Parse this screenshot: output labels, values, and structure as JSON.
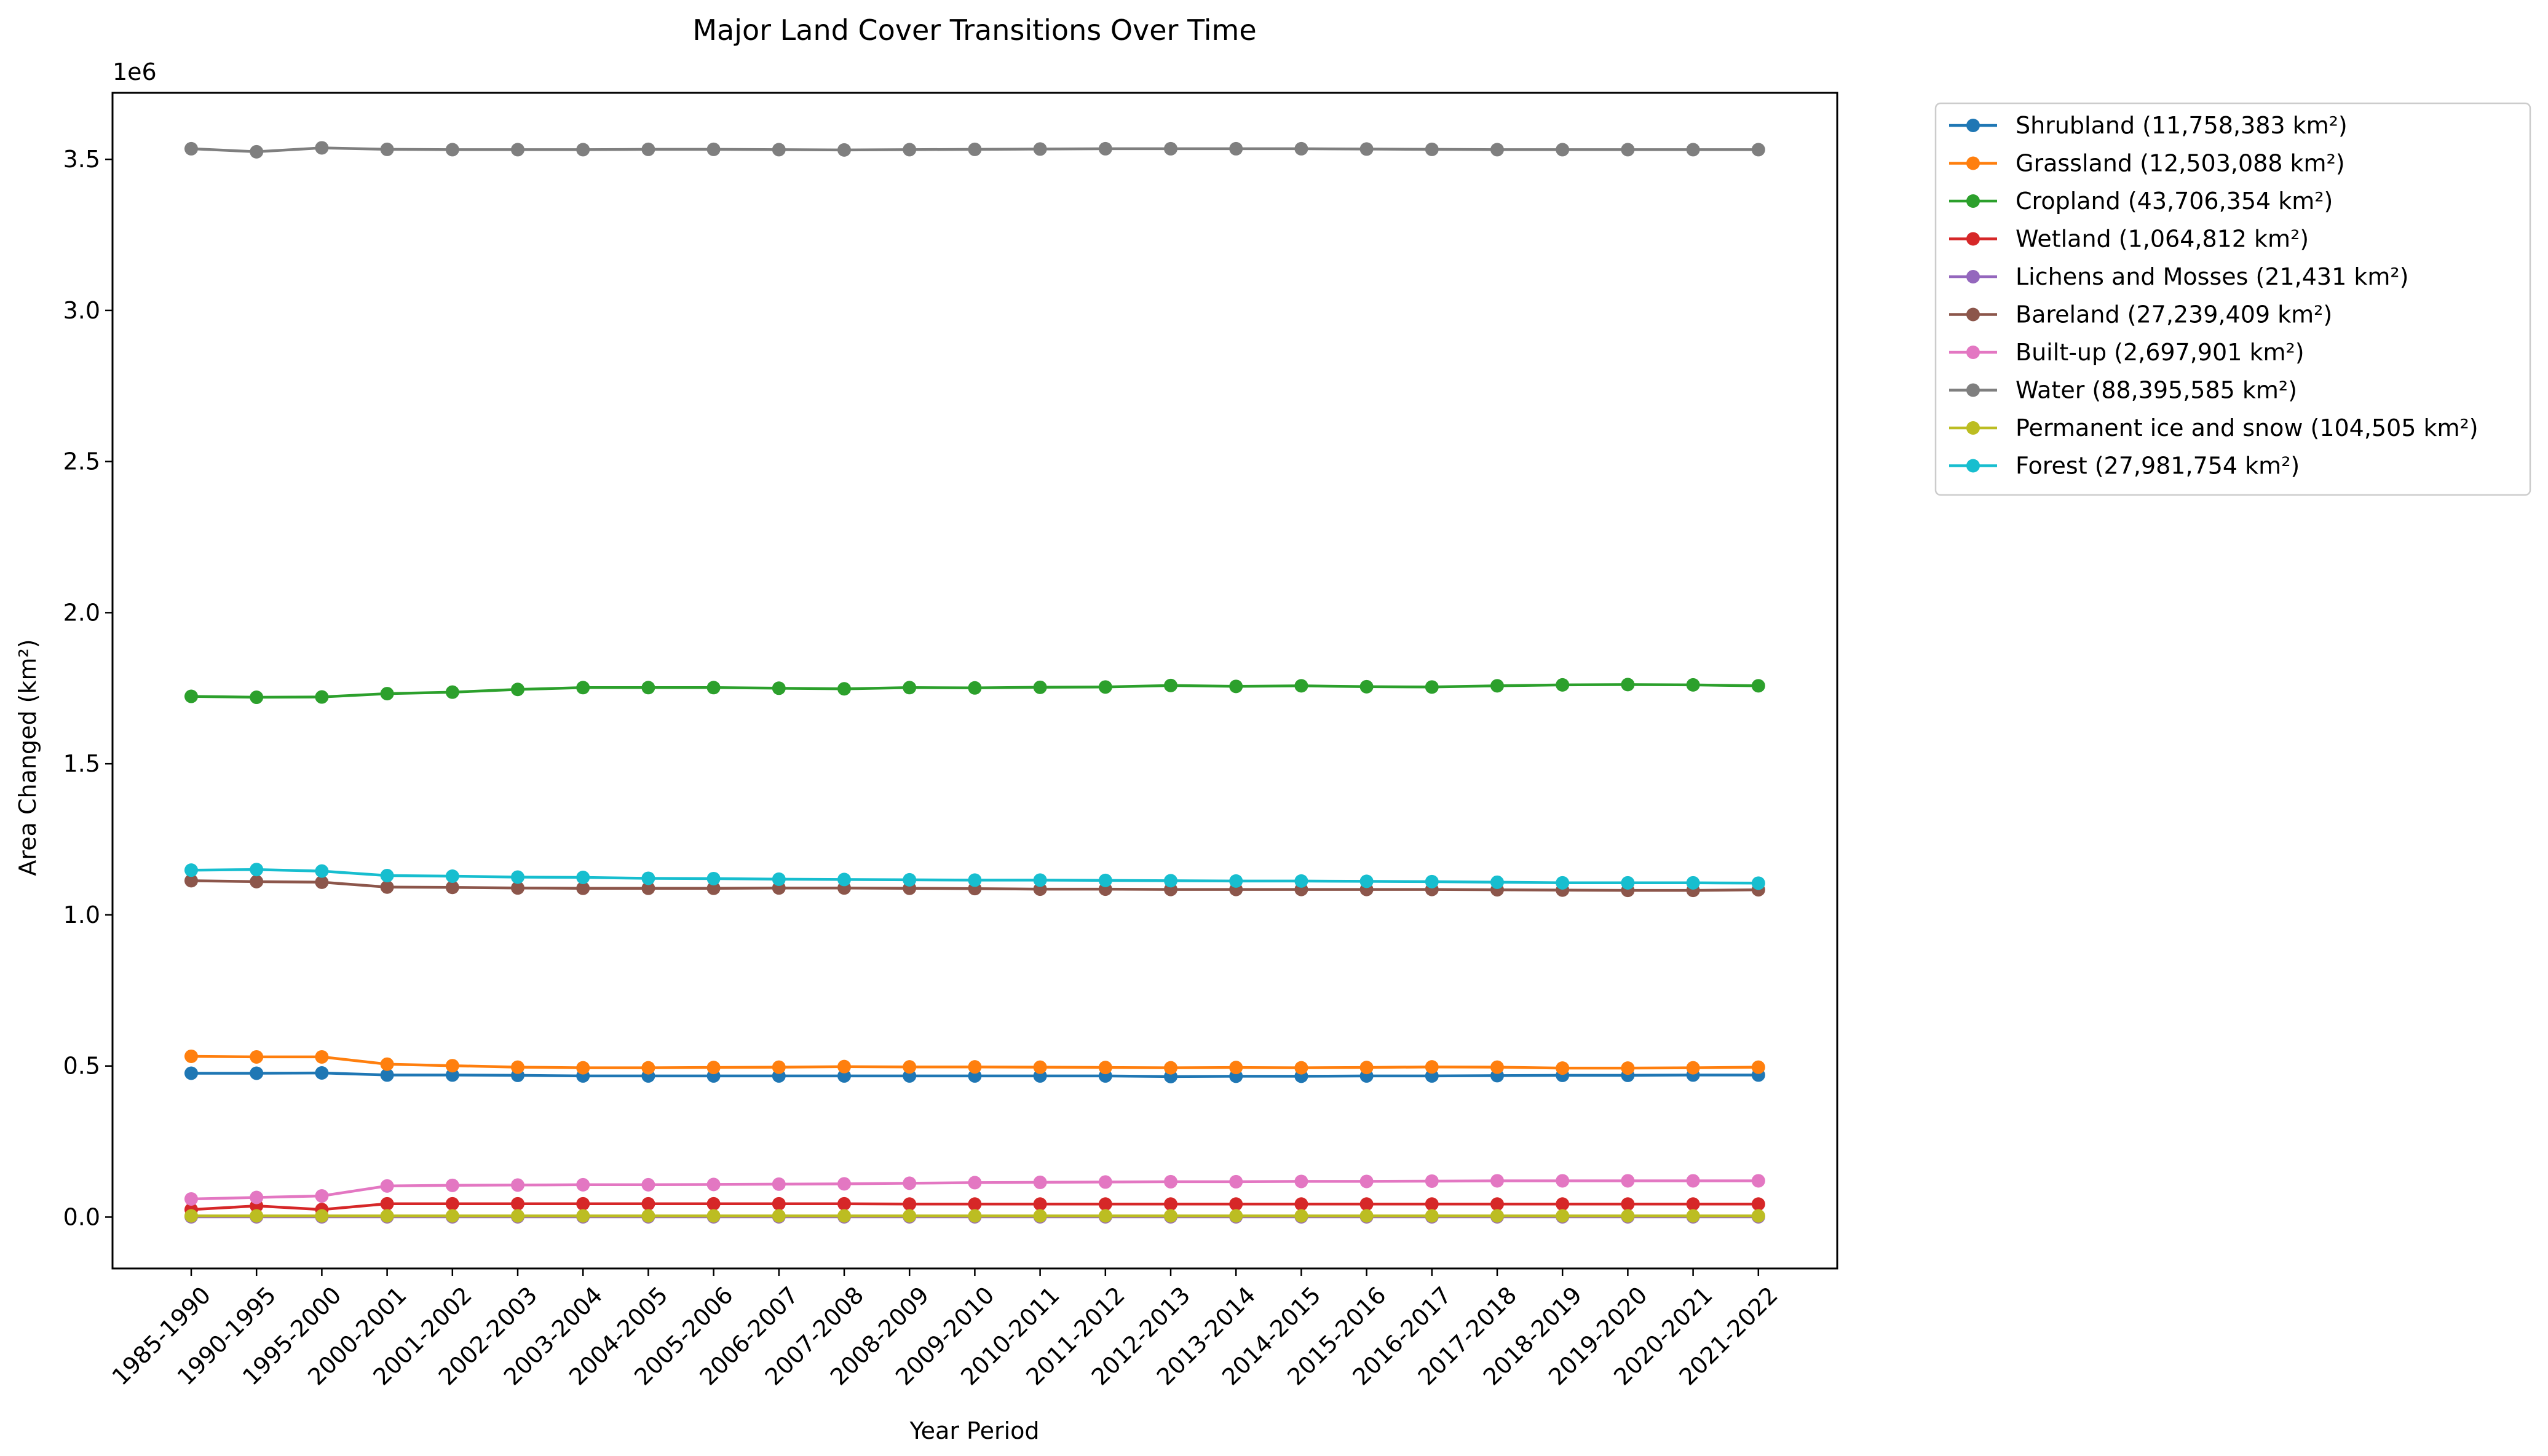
{
  "chart_data": {
    "type": "line",
    "title": "Major Land Cover Transitions Over Time",
    "xlabel": "Year Period",
    "ylabel": "Area Changed (km²)",
    "y_offset_label": "1e6",
    "ylim": [
      -170000,
      3720000
    ],
    "yticks": [
      0.0,
      0.5,
      1.0,
      1.5,
      2.0,
      2.5,
      3.0,
      3.5
    ],
    "ytick_multiplier": 1000000,
    "grid": false,
    "legend_position": "outside-top-right",
    "categories": [
      "1985-1990",
      "1990-1995",
      "1995-2000",
      "2000-2001",
      "2001-2002",
      "2002-2003",
      "2003-2004",
      "2004-2005",
      "2005-2006",
      "2006-2007",
      "2007-2008",
      "2008-2009",
      "2009-2010",
      "2010-2011",
      "2011-2012",
      "2012-2013",
      "2013-2014",
      "2014-2015",
      "2015-2016",
      "2016-2017",
      "2017-2018",
      "2018-2019",
      "2019-2020",
      "2020-2021",
      "2021-2022"
    ],
    "series": [
      {
        "name": "Shrubland (11,758,383 km²)",
        "color": "#1f77b4",
        "values": [
          476000,
          476000,
          477000,
          470000,
          470000,
          469000,
          467000,
          467000,
          467000,
          467000,
          467000,
          467000,
          467000,
          467000,
          467000,
          465000,
          466000,
          466000,
          467000,
          467000,
          468000,
          469000,
          469000,
          470000,
          470000
        ]
      },
      {
        "name": "Grassland (12,503,088 km²)",
        "color": "#ff7f0e",
        "values": [
          532000,
          530000,
          530000,
          506000,
          501000,
          496000,
          494000,
          494000,
          495000,
          496000,
          498000,
          497000,
          497000,
          496000,
          495000,
          494000,
          495000,
          494000,
          495000,
          497000,
          496000,
          493000,
          493000,
          494000,
          496000
        ]
      },
      {
        "name": "Cropland (43,706,354 km²)",
        "color": "#2ca02c",
        "values": [
          1723000,
          1720000,
          1721000,
          1732000,
          1737000,
          1746000,
          1752000,
          1752000,
          1752000,
          1750000,
          1748000,
          1752000,
          1751000,
          1753000,
          1754000,
          1759000,
          1756000,
          1758000,
          1755000,
          1754000,
          1758000,
          1761000,
          1762000,
          1761000,
          1758000
        ]
      },
      {
        "name": "Wetland (1,064,812 km²)",
        "color": "#d62728",
        "values": [
          25000,
          37000,
          25000,
          44000,
          44000,
          44000,
          44000,
          44000,
          44000,
          44000,
          44000,
          43000,
          43000,
          43000,
          43000,
          43000,
          43000,
          43000,
          43000,
          43000,
          43000,
          43000,
          43000,
          43000,
          43000
        ]
      },
      {
        "name": "Lichens and Mosses (21,431 km²)",
        "color": "#9467bd",
        "values": [
          1000,
          1000,
          1000,
          1000,
          1000,
          1000,
          1000,
          1000,
          1000,
          1000,
          1000,
          1000,
          1000,
          1000,
          1000,
          1000,
          1000,
          1000,
          1000,
          1000,
          1000,
          1000,
          1000,
          1000,
          1000
        ]
      },
      {
        "name": "Bareland (27,239,409 km²)",
        "color": "#8c564b",
        "values": [
          1113000,
          1110000,
          1108000,
          1092000,
          1091000,
          1089000,
          1088000,
          1088000,
          1088000,
          1089000,
          1089000,
          1088000,
          1087000,
          1085000,
          1085000,
          1084000,
          1084000,
          1084000,
          1084000,
          1084000,
          1083000,
          1082000,
          1081000,
          1081000,
          1083000
        ]
      },
      {
        "name": "Built-up (2,697,901 km²)",
        "color": "#e377c2",
        "values": [
          60000,
          65000,
          70000,
          103000,
          105000,
          106000,
          107000,
          107000,
          108000,
          109000,
          110000,
          112000,
          114000,
          115000,
          116000,
          117000,
          117000,
          118000,
          118000,
          119000,
          120000,
          120000,
          120000,
          120000,
          120000
        ]
      },
      {
        "name": "Water (88,395,585 km²)",
        "color": "#7f7f7f",
        "values": [
          3535000,
          3525000,
          3538000,
          3533000,
          3532000,
          3532000,
          3532000,
          3533000,
          3533000,
          3532000,
          3531000,
          3532000,
          3533000,
          3534000,
          3535000,
          3535000,
          3535000,
          3535000,
          3534000,
          3533000,
          3532000,
          3532000,
          3532000,
          3532000,
          3532000
        ]
      },
      {
        "name": "Permanent ice and snow (104,505 km²)",
        "color": "#bcbd22",
        "values": [
          4000,
          4000,
          4000,
          4000,
          4000,
          4000,
          4000,
          4000,
          4000,
          4000,
          4000,
          4000,
          4000,
          4000,
          4000,
          4000,
          4000,
          4000,
          4000,
          4000,
          4000,
          4000,
          4000,
          4000,
          4000
        ]
      },
      {
        "name": "Forest (27,981,754 km²)",
        "color": "#17becf",
        "values": [
          1148000,
          1150000,
          1145000,
          1130000,
          1128000,
          1125000,
          1124000,
          1121000,
          1120000,
          1118000,
          1117000,
          1116000,
          1115000,
          1115000,
          1114000,
          1113000,
          1112000,
          1112000,
          1111000,
          1110000,
          1108000,
          1106000,
          1106000,
          1106000,
          1105000
        ]
      }
    ]
  }
}
